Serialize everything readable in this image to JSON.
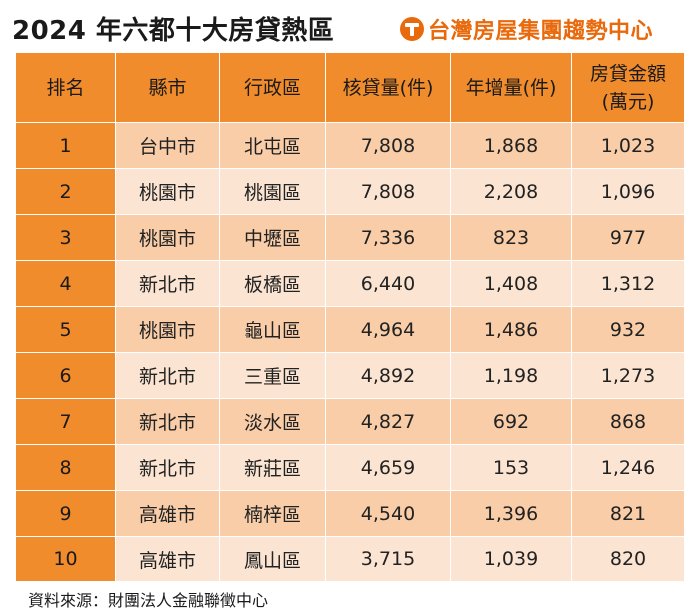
{
  "title": "2024 年六都十大房貸熱區",
  "brand": {
    "name": "台灣房屋集團趨勢中心",
    "logo_icon": "tw-house-logo-icon",
    "color": "#e86a0c"
  },
  "table": {
    "headers": [
      "排名",
      "縣市",
      "行政區",
      "核貸量(件)",
      "年增量(件)",
      "房貸金額",
      "(萬元)"
    ],
    "rows": [
      {
        "rank": "1",
        "city": "台中市",
        "district": "北屯區",
        "loans": "7,808",
        "growth": "1,868",
        "amount": "1,023"
      },
      {
        "rank": "2",
        "city": "桃園市",
        "district": "桃園區",
        "loans": "7,808",
        "growth": "2,208",
        "amount": "1,096"
      },
      {
        "rank": "3",
        "city": "桃園市",
        "district": "中壢區",
        "loans": "7,336",
        "growth": "823",
        "amount": "977"
      },
      {
        "rank": "4",
        "city": "新北市",
        "district": "板橋區",
        "loans": "6,440",
        "growth": "1,408",
        "amount": "1,312"
      },
      {
        "rank": "5",
        "city": "桃園市",
        "district": "龜山區",
        "loans": "4,964",
        "growth": "1,486",
        "amount": "932"
      },
      {
        "rank": "6",
        "city": "新北市",
        "district": "三重區",
        "loans": "4,892",
        "growth": "1,198",
        "amount": "1,273"
      },
      {
        "rank": "7",
        "city": "新北市",
        "district": "淡水區",
        "loans": "4,827",
        "growth": "692",
        "amount": "868"
      },
      {
        "rank": "8",
        "city": "新北市",
        "district": "新莊區",
        "loans": "4,659",
        "growth": "153",
        "amount": "1,246"
      },
      {
        "rank": "9",
        "city": "高雄市",
        "district": "楠梓區",
        "loans": "4,540",
        "growth": "1,396",
        "amount": "821"
      },
      {
        "rank": "10",
        "city": "高雄市",
        "district": "鳳山區",
        "loans": "3,715",
        "growth": "1,039",
        "amount": "820"
      }
    ],
    "highlight_color": "#c0302a",
    "header_color": "#f08c2c",
    "row_colors": [
      "#f8cda8",
      "#fbe5d2"
    ]
  },
  "source": "資料來源：財團法人金融聯徵中心"
}
